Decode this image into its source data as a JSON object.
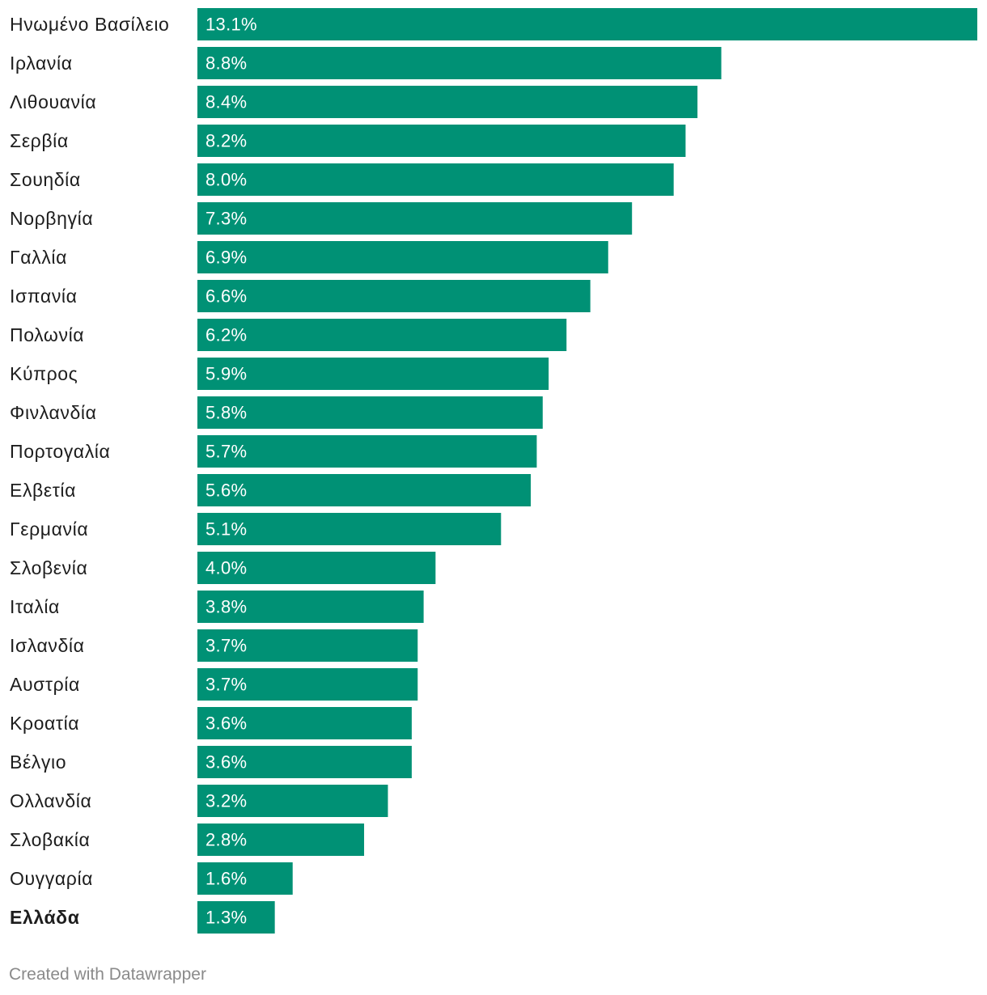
{
  "chart_data": {
    "type": "bar",
    "orientation": "horizontal",
    "title": "",
    "xlabel": "",
    "ylabel": "",
    "value_suffix": "%",
    "xlim": [
      0,
      13.1
    ],
    "bar_color": "#009175",
    "label_color": "#ffffff",
    "highlighted_category": "Ελλάδα",
    "categories": [
      "Ηνωμένο Βασίλειο",
      "Ιρλανία",
      "Λιθουανία",
      "Σερβία",
      "Σουηδία",
      "Νορβηγία",
      "Γαλλία",
      "Ισπανία",
      "Πολωνία",
      "Κύπρος",
      "Φινλανδία",
      "Πορτογαλία",
      "Ελβετία",
      "Γερμανία",
      "Σλοβενία",
      "Ιταλία",
      "Ισλανδία",
      "Αυστρία",
      "Κροατία",
      "Βέλγιο",
      "Ολλανδία",
      "Σλοβακία",
      "Ουγγαρία",
      "Ελλάδα"
    ],
    "values": [
      13.1,
      8.8,
      8.4,
      8.2,
      8.0,
      7.3,
      6.9,
      6.6,
      6.2,
      5.9,
      5.8,
      5.7,
      5.6,
      5.1,
      4.0,
      3.8,
      3.7,
      3.7,
      3.6,
      3.6,
      3.2,
      2.8,
      1.6,
      1.3
    ],
    "value_labels": [
      "13.1%",
      "8.8%",
      "8.4%",
      "8.2%",
      "8.0%",
      "7.3%",
      "6.9%",
      "6.6%",
      "6.2%",
      "5.9%",
      "5.8%",
      "5.7%",
      "5.6%",
      "5.1%",
      "4.0%",
      "3.8%",
      "3.7%",
      "3.7%",
      "3.6%",
      "3.6%",
      "3.2%",
      "2.8%",
      "1.6%",
      "1.3%"
    ]
  },
  "footer": {
    "credit": "Created with Datawrapper"
  }
}
